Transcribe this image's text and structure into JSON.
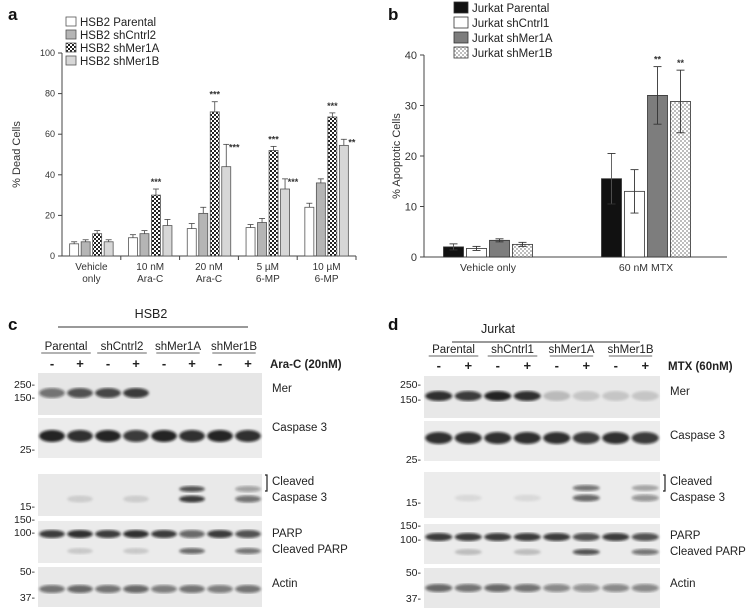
{
  "chart_data": [
    {
      "panel": "a",
      "type": "bar",
      "ylabel": "% Dead Cells",
      "ylim": [
        0,
        100
      ],
      "yticks": [
        0,
        20,
        40,
        60,
        80,
        100
      ],
      "categories": [
        "Vehicle only",
        "10 nM Ara-C",
        "20 nM Ara-C",
        "5 µM 6-MP",
        "10 µM 6-MP"
      ],
      "category_lines": [
        [
          "Vehicle",
          "only"
        ],
        [
          "10 nM",
          "Ara-C"
        ],
        [
          "20 nM",
          "Ara-C"
        ],
        [
          "5 µM",
          "6-MP"
        ],
        [
          "10 µM",
          "6-MP"
        ]
      ],
      "legend_position": "top-left",
      "series": [
        {
          "name": "HSB2 Parental",
          "values": [
            6,
            9,
            13.5,
            14,
            24
          ],
          "errors": [
            1,
            1.5,
            2.5,
            1.5,
            2
          ],
          "stars": [
            "",
            "",
            "",
            "",
            ""
          ]
        },
        {
          "name": "HSB2 shCntrl2",
          "values": [
            7,
            11,
            21,
            16.5,
            36
          ],
          "errors": [
            1,
            1.5,
            3,
            2,
            2
          ],
          "stars": [
            "",
            "",
            "",
            "",
            ""
          ]
        },
        {
          "name": "HSB2 shMer1A",
          "values": [
            11,
            30,
            71,
            52,
            68.5
          ],
          "errors": [
            1.5,
            3,
            5,
            2,
            2
          ],
          "stars": [
            "",
            "***",
            "***",
            "***",
            "***"
          ]
        },
        {
          "name": "HSB2 shMer1B",
          "values": [
            7,
            15,
            44,
            33,
            54.5
          ],
          "errors": [
            1,
            3,
            11,
            5,
            3
          ],
          "stars": [
            "",
            "",
            "***",
            "***",
            "**"
          ]
        }
      ]
    },
    {
      "panel": "b",
      "type": "bar",
      "ylabel": "% Apoptotic Cells",
      "ylim": [
        0,
        40
      ],
      "yticks": [
        0,
        10,
        20,
        30,
        40
      ],
      "categories": [
        "Vehicle only",
        "60 nM MTX"
      ],
      "legend_position": "top-left",
      "series": [
        {
          "name": "Jurkat Parental",
          "values": [
            2,
            15.5
          ],
          "errors": [
            0.6,
            5
          ],
          "stars": [
            "",
            ""
          ]
        },
        {
          "name": "Jurkat shCntrl1",
          "values": [
            1.7,
            13
          ],
          "errors": [
            0.4,
            4.3
          ],
          "stars": [
            "",
            ""
          ]
        },
        {
          "name": "Jurkat shMer1A",
          "values": [
            3.3,
            32
          ],
          "errors": [
            0.3,
            5.7
          ],
          "stars": [
            "",
            "**"
          ]
        },
        {
          "name": "Jurkat shMer1B",
          "values": [
            2.5,
            30.8
          ],
          "errors": [
            0.4,
            6.2
          ],
          "stars": [
            "",
            "**"
          ]
        }
      ]
    }
  ],
  "colors": {
    "parental": "#111111",
    "shcntrl": "#ffffff",
    "shmer1a": "#7d7d7d",
    "shmer1b": "#d9d9d9",
    "bar_a_cntrl": "#b5b5b5",
    "bar_a_1b": "#d7d7d7"
  },
  "blot_c": {
    "letter": "c",
    "cell_line": "HSB2",
    "groups": [
      "Parental",
      "shCntrl2",
      "shMer1A",
      "shMer1B"
    ],
    "treatment_signs": [
      "-",
      "+",
      "-",
      "+",
      "-",
      "+",
      "-",
      "+"
    ],
    "treatment": "Ara-C (20nM)",
    "rows": [
      {
        "label": "Mer",
        "mw": [
          "250-",
          "150-"
        ]
      },
      {
        "label": "Caspase 3",
        "mw": [
          "25-"
        ]
      },
      {
        "label": "Cleaved Caspase 3",
        "label_lines": [
          "Cleaved",
          "Caspase 3"
        ],
        "mw": [
          "15-"
        ]
      },
      {
        "label": "PARP Cleaved PARP",
        "label_lines": [
          "PARP",
          "Cleaved PARP"
        ],
        "mw": [
          "150-",
          "100-"
        ]
      },
      {
        "label": "Actin",
        "mw": [
          "50-",
          "37-"
        ]
      }
    ]
  },
  "blot_d": {
    "letter": "d",
    "cell_line": "Jurkat",
    "groups": [
      "Parental",
      "shCntrl1",
      "shMer1A",
      "shMer1B"
    ],
    "treatment_signs": [
      "-",
      "+",
      "-",
      "+",
      "-",
      "+",
      "-",
      "+"
    ],
    "treatment": "MTX (60nM)",
    "rows": [
      {
        "label": "Mer",
        "mw": [
          "250-",
          "150-"
        ]
      },
      {
        "label": "Caspase 3",
        "mw": [
          "25-"
        ]
      },
      {
        "label": "Cleaved Caspase 3",
        "label_lines": [
          "Cleaved",
          "Caspase 3"
        ],
        "mw": [
          "15-"
        ]
      },
      {
        "label": "PARP Cleaved PARP",
        "label_lines": [
          "PARP",
          "Cleaved PARP"
        ],
        "mw": [
          "150-",
          "100-"
        ]
      },
      {
        "label": "Actin",
        "mw": [
          "50-",
          "37-"
        ]
      }
    ]
  }
}
